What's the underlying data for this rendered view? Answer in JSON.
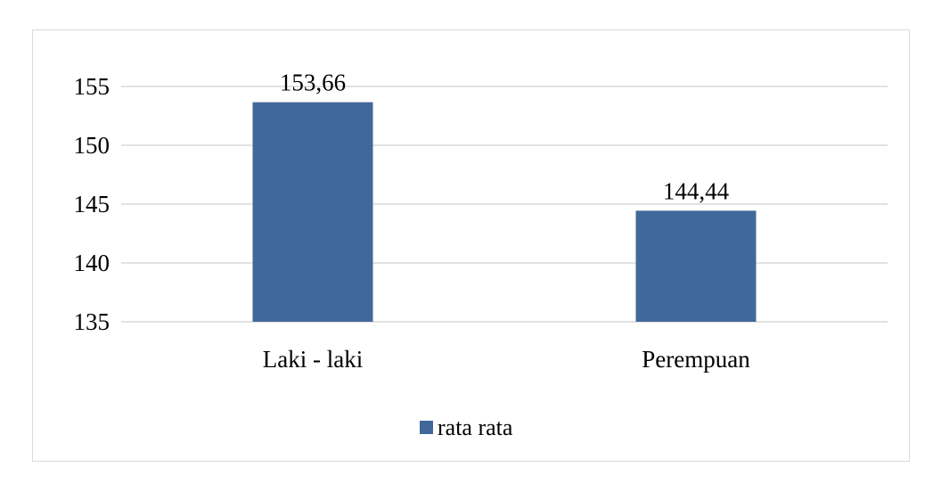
{
  "chart_data": {
    "type": "bar",
    "categories": [
      "Laki - laki",
      "Perempuan"
    ],
    "series": [
      {
        "name": "rata rata",
        "values": [
          153.66,
          144.44
        ],
        "color": "#41689a"
      }
    ],
    "data_labels": [
      "153,66",
      "144,44"
    ],
    "y_ticks": [
      135,
      140,
      145,
      150,
      155
    ],
    "y_tick_labels": [
      "135",
      "140",
      "145",
      "150",
      "155"
    ],
    "ylim": [
      135,
      155
    ],
    "grid": true,
    "grid_color": "#d9d9d9",
    "legend_position": "bottom",
    "title": "",
    "xlabel": "",
    "ylabel": ""
  }
}
